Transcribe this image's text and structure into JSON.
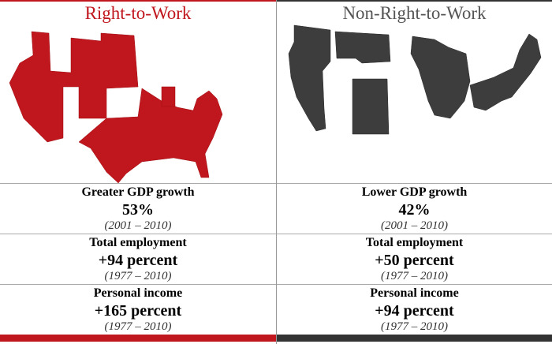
{
  "columns": [
    {
      "title": "Right-to-Work",
      "rows": [
        {
          "label": "Greater GDP growth",
          "value": "53%",
          "period": "(2001 – 2010)"
        },
        {
          "label": "Total employment",
          "value": "+94 percent",
          "period": "(1977 – 2010)"
        },
        {
          "label": "Personal income",
          "value": "+165 percent",
          "period": "(1977 – 2010)"
        }
      ]
    },
    {
      "title": "Non-Right-to-Work",
      "rows": [
        {
          "label": "Lower GDP growth",
          "value": "42%",
          "period": "(2001 – 2010)"
        },
        {
          "label": "Total employment",
          "value": "+50 percent",
          "period": "(1977 – 2010)"
        },
        {
          "label": "Personal income",
          "value": "+94 percent",
          "period": "(1977 – 2010)"
        }
      ]
    }
  ]
}
